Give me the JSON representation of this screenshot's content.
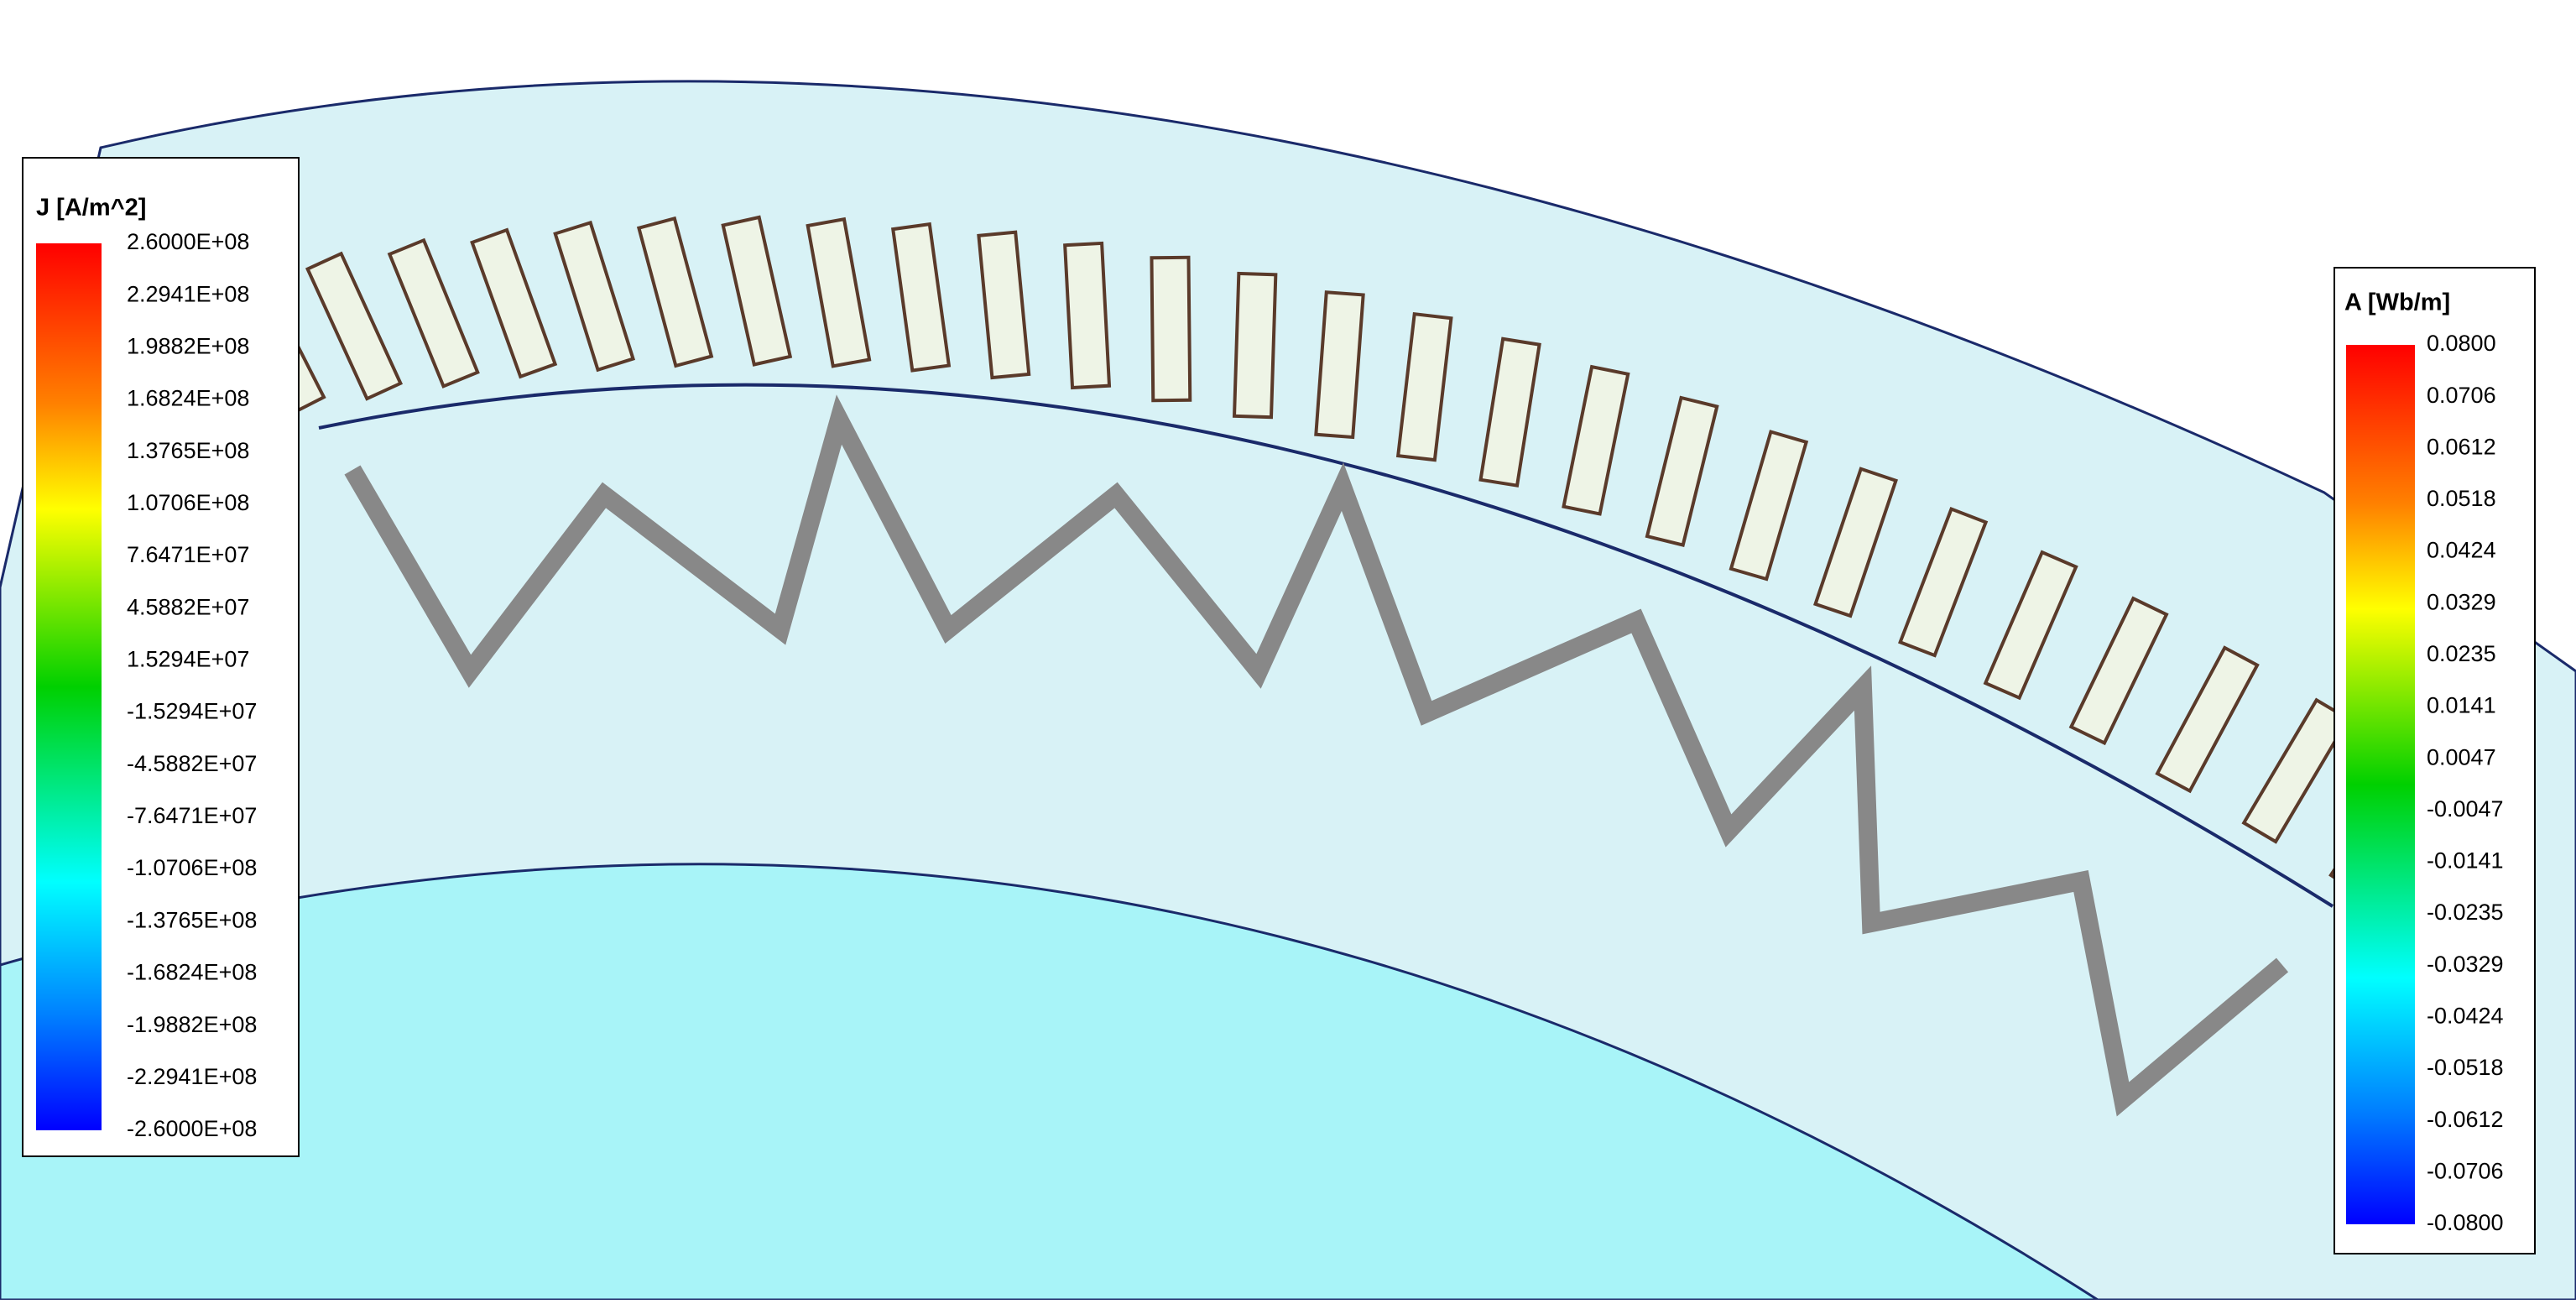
{
  "legends": [
    {
      "title": "J [A/m^2]",
      "labels": [
        "2.6000E+08",
        "2.2941E+08",
        "1.9882E+08",
        "1.6824E+08",
        "1.3765E+08",
        "1.0706E+08",
        "7.6471E+07",
        "4.5882E+07",
        "1.5294E+07",
        "-1.5294E+07",
        "-4.5882E+07",
        "-7.6471E+07",
        "-1.0706E+08",
        "-1.3765E+08",
        "-1.6824E+08",
        "-1.9882E+08",
        "-2.2941E+08",
        "-2.6000E+08"
      ]
    },
    {
      "title": "A [Wb/m]",
      "labels": [
        "0.0800",
        "0.0706",
        "0.0612",
        "0.0518",
        "0.0424",
        "0.0329",
        "0.0235",
        "0.0141",
        "0.0047",
        "-0.0047",
        "-0.0141",
        "-0.0235",
        "-0.0329",
        "-0.0424",
        "-0.0518",
        "-0.0612",
        "-0.0706",
        "-0.0800"
      ]
    }
  ]
}
